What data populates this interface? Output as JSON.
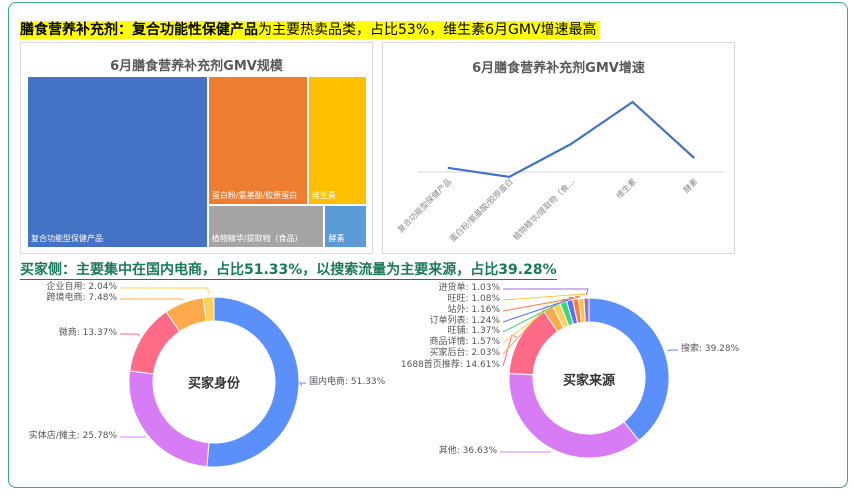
{
  "headline1": {
    "bold": "膳食营养补充剂：复合功能性保健产品",
    "rest": "为主要热卖品类，占比53%，维生素6月GMV增速最高"
  },
  "headline2": "买家侧：主要集中在国内电商，占比51.33%，以搜索流量为主要来源，占比39.28%",
  "chart_data": [
    {
      "type": "treemap",
      "title": "6月膳食营养补充剂GMV规模",
      "categories": [
        "复合功能型保健产品",
        "蛋白粉/氨基酸/胶原蛋白",
        "维生素",
        "植物精华/提取物（食品）",
        "酵素"
      ],
      "values": [
        53,
        22,
        13,
        8.5,
        3.1
      ],
      "colors": [
        "#4472c4",
        "#ed7d31",
        "#ffc000",
        "#a5a5a5",
        "#5b9bd5"
      ]
    },
    {
      "type": "line",
      "title": "6月膳食营养补充剂GMV增速",
      "categories": [
        "复合功能型保健产品",
        "蛋白粉/氨基酸/胶原蛋白",
        "植物精华/提取物（食…",
        "维生素",
        "酵素"
      ],
      "values": [
        0.06,
        -0.07,
        0.4,
        1.0,
        0.2
      ],
      "ylim": [
        -0.3,
        1.3
      ],
      "color": "#4472c4",
      "grid": false
    },
    {
      "type": "pie",
      "donut": true,
      "title": "买家身份",
      "categories": [
        "国内电商",
        "实体店/摊主",
        "微商",
        "跨境电商",
        "企业自用"
      ],
      "values": [
        51.33,
        25.78,
        13.37,
        7.48,
        2.04
      ],
      "labels": [
        "国内电商: 51.33%",
        "实体店/摊主: 25.78%",
        "微商: 13.37%",
        "跨境电商: 7.48%",
        "企业自用: 2.04%"
      ],
      "colors": [
        "#5b8ff9",
        "#d87cf5",
        "#ff6b87",
        "#ffa94d",
        "#ffd15c"
      ]
    },
    {
      "type": "pie",
      "donut": true,
      "title": "买家来源",
      "categories": [
        "搜索",
        "其他",
        "1688首页推荐",
        "买家后台",
        "商品详情",
        "旺铺",
        "订单列表",
        "站外",
        "旺旺",
        "进货单"
      ],
      "values": [
        39.28,
        36.63,
        14.61,
        2.03,
        1.57,
        1.37,
        1.24,
        1.16,
        1.08,
        1.03
      ],
      "labels": [
        "搜索: 39.28%",
        "其他: 36.63%",
        "1688首页推荐: 14.61%",
        "买家后台: 2.03%",
        "商品详情: 1.57%",
        "旺铺: 1.37%",
        "订单列表: 1.24%",
        "站外: 1.16%",
        "旺旺: 1.08%",
        "进货单: 1.03%"
      ],
      "colors": [
        "#5b8ff9",
        "#d87cf5",
        "#ff6b87",
        "#ffa94d",
        "#ffd15c",
        "#3dd680",
        "#5b6ff9",
        "#ff7a45",
        "#ffc53d",
        "#9b6bd6"
      ]
    }
  ]
}
